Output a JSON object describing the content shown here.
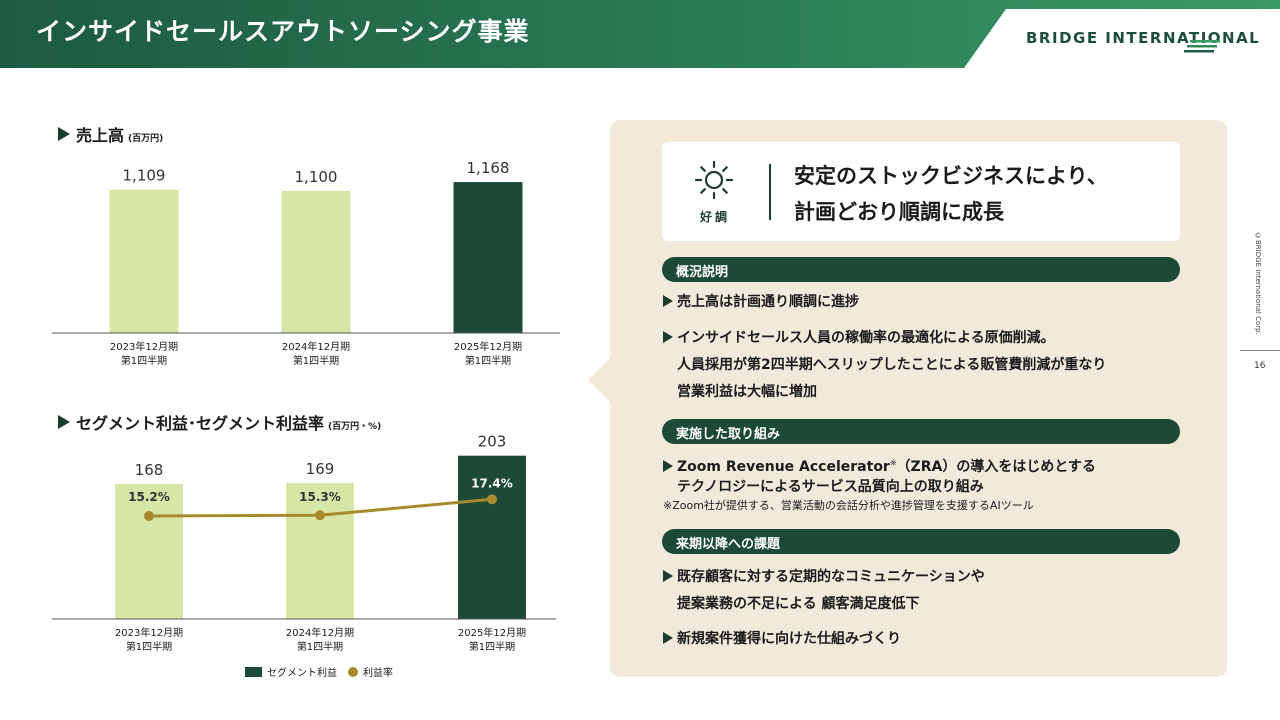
{
  "header": {
    "title": "インサイドセールスアウトソーシング事業",
    "logo": "BRIDGE INTERNATIONAL"
  },
  "side": {
    "copyright": "©BRIDGE International Corp.",
    "page_number": "16"
  },
  "sales_chart": {
    "heading": "売上高",
    "unit": "(百万円)"
  },
  "segment_chart": {
    "heading": "セグメント利益･セグメント利益率",
    "unit": "(百万円・%)",
    "legend_profit": "セグメント利益",
    "legend_rate": "利益率"
  },
  "chart_data": [
    {
      "type": "bar",
      "title": "売上高",
      "unit": "(百万円)",
      "categories": [
        [
          "2023年12月期",
          "第1四半期"
        ],
        [
          "2024年12月期",
          "第1四半期"
        ],
        [
          "2025年12月期",
          "第1四半期"
        ]
      ],
      "values": [
        1109,
        1100,
        1168
      ],
      "value_labels": [
        "1,109",
        "1,100",
        "1,168"
      ],
      "colors": [
        "#d5e6a6",
        "#d5e6a6",
        "#1c4a37"
      ],
      "ylim": [
        0,
        1300
      ],
      "grid": false
    },
    {
      "type": "bar",
      "title": "セグメント利益･セグメント利益率",
      "unit": "(百万円・%)",
      "categories": [
        [
          "2023年12月期",
          "第1四半期"
        ],
        [
          "2024年12月期",
          "第1四半期"
        ],
        [
          "2025年12月期",
          "第1四半期"
        ]
      ],
      "series": [
        {
          "name": "セグメント利益",
          "type": "bar",
          "values": [
            168,
            169,
            203
          ],
          "value_labels": [
            "168",
            "169",
            "203"
          ],
          "colors": [
            "#d5e6a6",
            "#d5e6a6",
            "#1c4a37"
          ]
        },
        {
          "name": "利益率",
          "type": "line",
          "values": [
            15.2,
            15.3,
            17.4
          ],
          "value_labels": [
            "15.2%",
            "15.3%",
            "17.4%"
          ],
          "color": "#a88a2e"
        }
      ],
      "ylim": [
        0,
        220
      ],
      "legend": "bottom-center",
      "grid": false
    }
  ],
  "hero": {
    "icon": "sun-icon",
    "icon_label": "好調",
    "line1": "安定のストックビジネスにより、",
    "line2": "計画どおり順調に成長"
  },
  "overview": {
    "title": "概況説明",
    "lines": [
      "売上高は計画通り順調に進捗",
      "インサイドセールス人員の稼働率の最適化による原価削減。",
      "人員採用が第2四半期へスリップしたことによる販管費削減が重なり",
      "営業利益は大幅に増加"
    ]
  },
  "initiatives": {
    "title": "実施した取り組み",
    "line1": "Zoom Revenue Accelerator",
    "line1_mark": "※",
    "line1_rest": "（ZRA）の導入をはじめとする",
    "line2": "テクノロジーによるサービス品質向上の取り組み",
    "note": "※Zoom社が提供する、営業活動の会話分析や進捗管理を支援するAIツール"
  },
  "issues": {
    "title": "来期以降への課題",
    "lines": [
      "既存顧客に対する定期的なコミュニケーションや",
      "提案業務の不足による 顧客満足度低下",
      "新規案件獲得に向けた仕組みづくり"
    ]
  }
}
